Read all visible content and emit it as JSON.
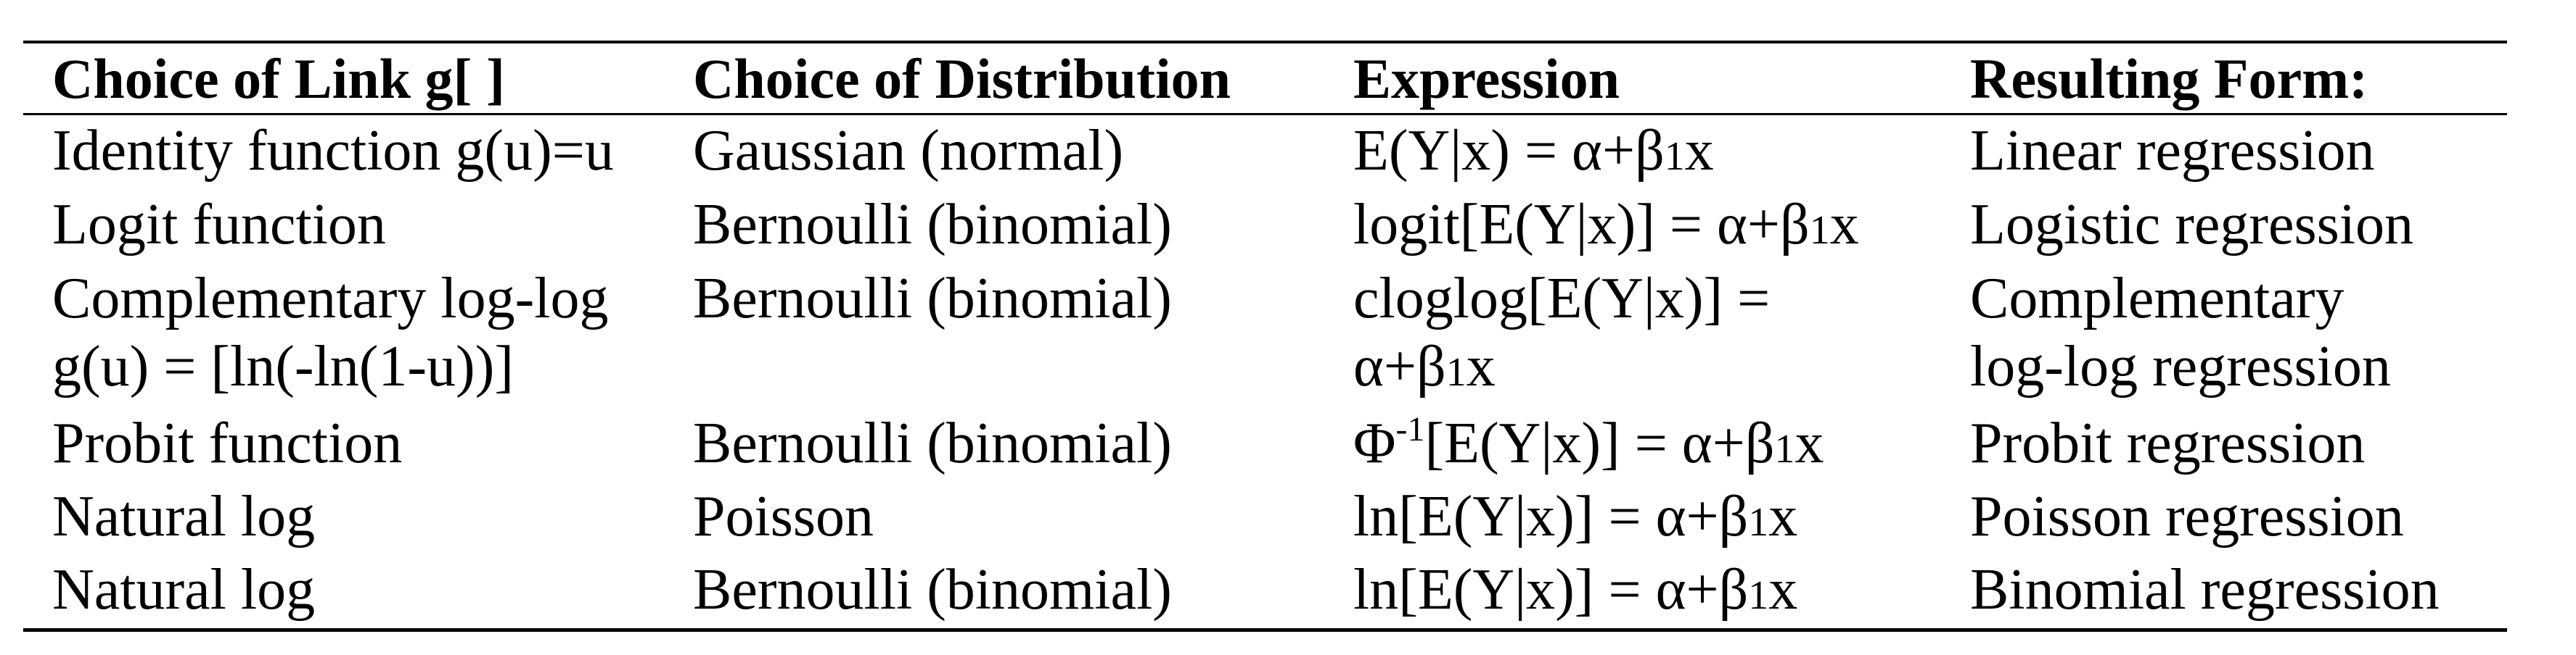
{
  "headers": {
    "link": "Choice of Link g[ ]",
    "distribution": "Choice of Distribution",
    "expression": "Expression",
    "form": "Resulting Form:"
  },
  "rows": [
    {
      "link": [
        "Identity function g(u)=u"
      ],
      "distribution": "Gaussian (normal)",
      "expression": {
        "pre": "E(Y|x) = α+β",
        "sub": "1",
        "post": "x"
      },
      "form": [
        "Linear regression"
      ]
    },
    {
      "link": [
        "Logit function"
      ],
      "distribution": "Bernoulli (binomial)",
      "expression": {
        "pre": "logit[E(Y|x)] = α+β",
        "sub": "1",
        "post": "x"
      },
      "form": [
        "Logistic regression"
      ]
    },
    {
      "link": [
        "Complementary log-log",
        "g(u) = [ln(-ln(1-u))]"
      ],
      "distribution": "Bernoulli (binomial)",
      "expression": {
        "line1": "cloglog[E(Y|x)] =",
        "pre": "α+β",
        "sub": "1",
        "post": "x"
      },
      "form": [
        "Complementary",
        "log-log regression"
      ]
    },
    {
      "link": [
        "Probit function"
      ],
      "distribution": "Bernoulli (binomial)",
      "expression": {
        "base": "Φ",
        "sup": "-1",
        "pre": "[E(Y|x)] = α+β",
        "sub": "1",
        "post": "x"
      },
      "form": [
        "Probit regression"
      ]
    },
    {
      "link": [
        "Natural log"
      ],
      "distribution": "Poisson",
      "expression": {
        "pre": "ln[E(Y|x)] = α+β",
        "sub": "1",
        "post": "x"
      },
      "form": [
        "Poisson regression"
      ]
    },
    {
      "link": [
        "Natural log"
      ],
      "distribution": "Bernoulli (binomial)",
      "expression": {
        "pre": "ln[E(Y|x)] = α+β",
        "sub": "1",
        "post": "x"
      },
      "form": [
        "Binomial regression"
      ]
    }
  ]
}
